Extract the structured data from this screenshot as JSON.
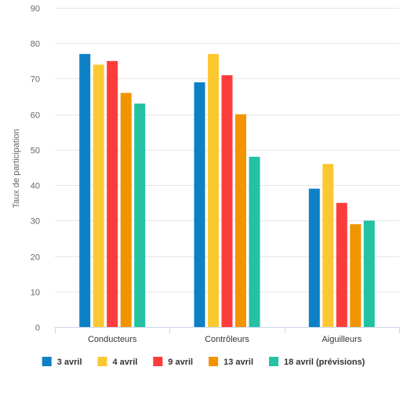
{
  "chart_data": {
    "type": "bar",
    "title": "",
    "xlabel": "",
    "ylabel": "Taux de participation",
    "categories": [
      "Conducteurs",
      "Contrôleurs",
      "Aiguilleurs"
    ],
    "series": [
      {
        "name": "3 avril",
        "color": "#0d80c6",
        "values": [
          77,
          69,
          39
        ]
      },
      {
        "name": "4 avril",
        "color": "#fcc832",
        "values": [
          74,
          77,
          46
        ]
      },
      {
        "name": "9 avril",
        "color": "#fc3c3c",
        "values": [
          75,
          71,
          35
        ]
      },
      {
        "name": "13 avril",
        "color": "#f29400",
        "values": [
          66,
          60,
          29
        ]
      },
      {
        "name": "18 avril (prévisions)",
        "color": "#24c1a2",
        "values": [
          63,
          48,
          30
        ]
      }
    ],
    "ylim": [
      0,
      90
    ],
    "yticks": [
      0,
      10,
      20,
      30,
      40,
      50,
      60,
      70,
      80,
      90
    ],
    "grid": true,
    "legend": "bottom"
  }
}
